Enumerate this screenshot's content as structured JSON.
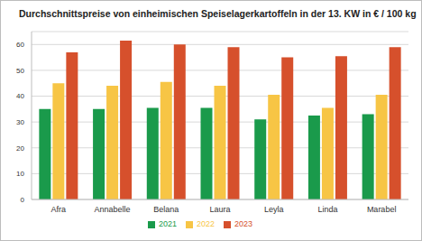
{
  "chart_data": {
    "type": "bar",
    "title": "Durchschnittspreise von einheimischen Speiselagerkartoffeln in der 13. KW in € / 100 kg",
    "categories": [
      "Afra",
      "Annabelle",
      "Belana",
      "Laura",
      "Leyla",
      "Linda",
      "Marabel"
    ],
    "series": [
      {
        "name": "2021",
        "color": "#1a9a4b",
        "values": [
          35,
          35,
          35.5,
          35.5,
          31,
          32.5,
          33
        ]
      },
      {
        "name": "2022",
        "color": "#f7c545",
        "values": [
          45,
          44,
          45.5,
          44,
          40.5,
          35.5,
          40.5
        ]
      },
      {
        "name": "2023",
        "color": "#d6502c",
        "values": [
          57,
          61.5,
          60,
          59,
          55,
          55.5,
          59
        ]
      }
    ],
    "ylim": [
      0,
      65
    ],
    "yticks": [
      0,
      10,
      20,
      30,
      40,
      50,
      60
    ],
    "grid": true,
    "legend": "bottom"
  }
}
